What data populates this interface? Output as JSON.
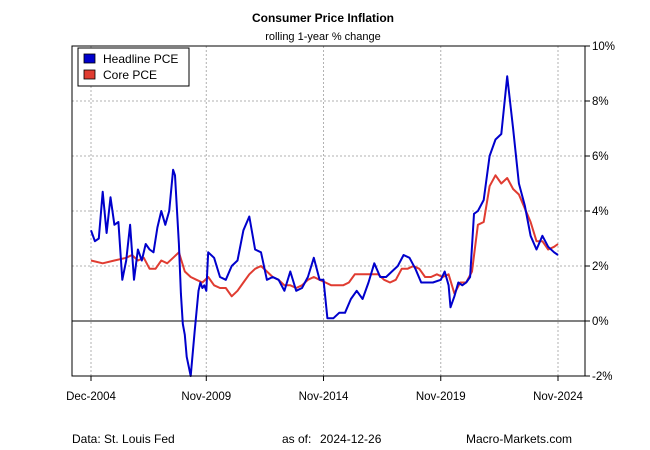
{
  "chart_data": {
    "type": "line",
    "title": "Consumer Price Inflation",
    "subtitle": "rolling 1-year % change",
    "x_tick_labels": [
      "Dec-2004",
      "Nov-2009",
      "Nov-2014",
      "Nov-2019",
      "Nov-2024"
    ],
    "x_ticks": [
      "2004-12",
      "2009-11",
      "2014-11",
      "2019-11",
      "2024-11"
    ],
    "y_tick_labels": [
      "-2%",
      "0%",
      "2%",
      "4%",
      "6%",
      "8%",
      "10%"
    ],
    "y_ticks": [
      -2,
      0,
      2,
      4,
      6,
      8,
      10
    ],
    "xlim": [
      "2004-12",
      "2024-11"
    ],
    "ylim": [
      -2,
      10
    ],
    "y_axis_side": "right",
    "grid": true,
    "zero_line": true,
    "legend_position": "top-left",
    "series": [
      {
        "name": "Headline PCE",
        "color": "#0000cc",
        "x": [
          "2004-12",
          "2005-02",
          "2005-04",
          "2005-06",
          "2005-08",
          "2005-10",
          "2005-12",
          "2006-02",
          "2006-04",
          "2006-06",
          "2006-08",
          "2006-10",
          "2006-12",
          "2007-02",
          "2007-04",
          "2007-06",
          "2007-08",
          "2007-10",
          "2007-12",
          "2008-02",
          "2008-04",
          "2008-06",
          "2008-07",
          "2008-09",
          "2008-10",
          "2008-11",
          "2008-12",
          "2009-01",
          "2009-03",
          "2009-05",
          "2009-07",
          "2009-08",
          "2009-09",
          "2009-10",
          "2009-11",
          "2009-12",
          "2010-03",
          "2010-06",
          "2010-09",
          "2010-12",
          "2011-03",
          "2011-06",
          "2011-09",
          "2011-12",
          "2012-03",
          "2012-06",
          "2012-09",
          "2012-12",
          "2013-03",
          "2013-06",
          "2013-09",
          "2013-12",
          "2014-03",
          "2014-06",
          "2014-09",
          "2014-11",
          "2015-01",
          "2015-04",
          "2015-07",
          "2015-10",
          "2016-01",
          "2016-04",
          "2016-07",
          "2016-10",
          "2017-01",
          "2017-04",
          "2017-07",
          "2017-10",
          "2018-01",
          "2018-04",
          "2018-07",
          "2018-10",
          "2019-01",
          "2019-04",
          "2019-07",
          "2019-11",
          "2020-01",
          "2020-03",
          "2020-04",
          "2020-06",
          "2020-08",
          "2020-10",
          "2020-12",
          "2021-02",
          "2021-04",
          "2021-06",
          "2021-09",
          "2021-12",
          "2022-03",
          "2022-06",
          "2022-09",
          "2022-12",
          "2023-03",
          "2023-06",
          "2023-09",
          "2023-12",
          "2024-03",
          "2024-06",
          "2024-09",
          "2024-11"
        ],
        "values": [
          3.3,
          2.9,
          3.0,
          4.7,
          3.2,
          4.5,
          3.5,
          3.6,
          1.5,
          2.2,
          3.5,
          1.5,
          2.6,
          2.2,
          2.8,
          2.6,
          2.5,
          3.4,
          4.0,
          3.5,
          4.0,
          5.5,
          5.3,
          2.8,
          1.0,
          -0.1,
          -0.5,
          -1.3,
          -2.0,
          -0.4,
          1.1,
          1.4,
          1.2,
          1.3,
          1.1,
          2.5,
          2.3,
          1.6,
          1.5,
          2.0,
          2.2,
          3.3,
          3.8,
          2.6,
          2.5,
          1.5,
          1.6,
          1.5,
          1.1,
          1.8,
          1.1,
          1.2,
          1.6,
          2.3,
          1.5,
          1.5,
          0.1,
          0.1,
          0.3,
          0.3,
          0.8,
          1.1,
          0.8,
          1.4,
          2.1,
          1.6,
          1.6,
          1.8,
          2.0,
          2.4,
          2.3,
          1.9,
          1.4,
          1.4,
          1.4,
          1.5,
          1.8,
          1.3,
          0.5,
          0.9,
          1.4,
          1.3,
          1.4,
          1.6,
          3.9,
          4.0,
          4.4,
          6.0,
          6.6,
          6.8,
          8.9,
          7.0,
          5.0,
          4.2,
          3.1,
          2.6,
          3.1,
          2.7,
          2.5,
          2.4
        ]
      },
      {
        "name": "Core PCE",
        "color": "#e03c31",
        "x": [
          "2004-12",
          "2005-06",
          "2005-12",
          "2006-06",
          "2006-09",
          "2006-12",
          "2007-03",
          "2007-06",
          "2007-09",
          "2007-12",
          "2008-03",
          "2008-06",
          "2008-09",
          "2008-12",
          "2009-03",
          "2009-06",
          "2009-09",
          "2009-12",
          "2010-03",
          "2010-06",
          "2010-09",
          "2010-12",
          "2011-03",
          "2011-06",
          "2011-09",
          "2011-12",
          "2012-03",
          "2012-06",
          "2012-09",
          "2012-12",
          "2013-03",
          "2013-06",
          "2013-09",
          "2013-12",
          "2014-03",
          "2014-06",
          "2014-09",
          "2014-12",
          "2015-03",
          "2015-06",
          "2015-09",
          "2015-12",
          "2016-03",
          "2016-06",
          "2016-09",
          "2016-12",
          "2017-03",
          "2017-06",
          "2017-09",
          "2017-12",
          "2018-03",
          "2018-06",
          "2018-09",
          "2018-12",
          "2019-03",
          "2019-06",
          "2019-09",
          "2019-12",
          "2020-03",
          "2020-06",
          "2020-09",
          "2020-12",
          "2021-03",
          "2021-06",
          "2021-09",
          "2021-12",
          "2022-03",
          "2022-06",
          "2022-09",
          "2022-12",
          "2023-03",
          "2023-06",
          "2023-09",
          "2023-12",
          "2024-03",
          "2024-06",
          "2024-09",
          "2024-11"
        ],
        "values": [
          2.2,
          2.1,
          2.2,
          2.3,
          2.4,
          2.2,
          2.3,
          1.9,
          1.9,
          2.2,
          2.1,
          2.3,
          2.5,
          1.8,
          1.6,
          1.5,
          1.4,
          1.6,
          1.3,
          1.2,
          1.2,
          0.9,
          1.1,
          1.4,
          1.7,
          1.9,
          2.0,
          1.8,
          1.6,
          1.5,
          1.3,
          1.3,
          1.2,
          1.3,
          1.5,
          1.6,
          1.5,
          1.4,
          1.3,
          1.3,
          1.3,
          1.4,
          1.7,
          1.7,
          1.7,
          1.7,
          1.7,
          1.5,
          1.4,
          1.5,
          1.9,
          1.9,
          2.0,
          1.9,
          1.6,
          1.6,
          1.7,
          1.6,
          1.7,
          1.0,
          1.4,
          1.4,
          1.8,
          3.5,
          3.6,
          4.9,
          5.3,
          5.0,
          5.2,
          4.8,
          4.6,
          4.1,
          3.6,
          2.9,
          2.9,
          2.6,
          2.7,
          2.8
        ]
      }
    ]
  },
  "footer": {
    "source": "Data: St. Louis Fed",
    "as_of_label": "as of:",
    "as_of_date": "2024-12-26",
    "site": "Macro-Markets.com"
  }
}
